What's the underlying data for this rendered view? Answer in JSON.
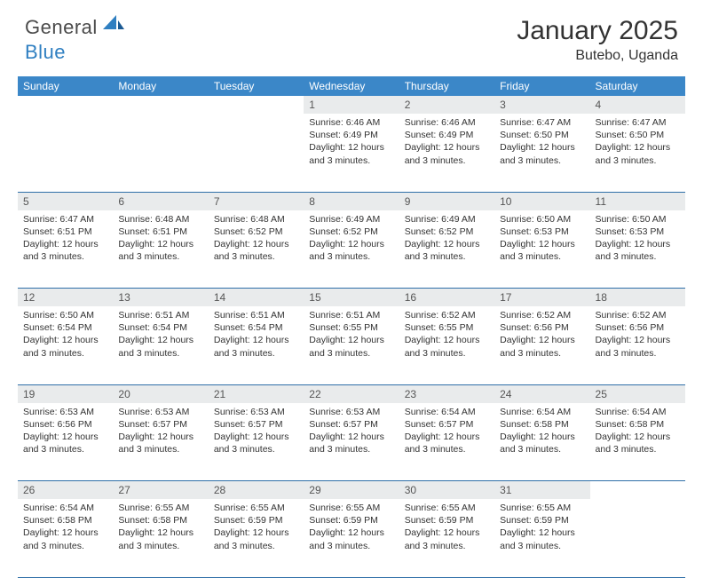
{
  "logo": {
    "part1": "General",
    "part2": "Blue"
  },
  "title": {
    "month": "January 2025",
    "location": "Butebo, Uganda"
  },
  "colors": {
    "header_bg": "#3b87c8",
    "header_text": "#ffffff",
    "daynum_bg": "#e9ebec",
    "border": "#2f6fa8",
    "logo_gray": "#4b4b4b",
    "logo_blue": "#2f7fc1"
  },
  "weekdays": [
    "Sunday",
    "Monday",
    "Tuesday",
    "Wednesday",
    "Thursday",
    "Friday",
    "Saturday"
  ],
  "first_weekday_index": 3,
  "days": [
    {
      "n": 1,
      "sunrise": "6:46 AM",
      "sunset": "6:49 PM",
      "daylight": "12 hours and 3 minutes."
    },
    {
      "n": 2,
      "sunrise": "6:46 AM",
      "sunset": "6:49 PM",
      "daylight": "12 hours and 3 minutes."
    },
    {
      "n": 3,
      "sunrise": "6:47 AM",
      "sunset": "6:50 PM",
      "daylight": "12 hours and 3 minutes."
    },
    {
      "n": 4,
      "sunrise": "6:47 AM",
      "sunset": "6:50 PM",
      "daylight": "12 hours and 3 minutes."
    },
    {
      "n": 5,
      "sunrise": "6:47 AM",
      "sunset": "6:51 PM",
      "daylight": "12 hours and 3 minutes."
    },
    {
      "n": 6,
      "sunrise": "6:48 AM",
      "sunset": "6:51 PM",
      "daylight": "12 hours and 3 minutes."
    },
    {
      "n": 7,
      "sunrise": "6:48 AM",
      "sunset": "6:52 PM",
      "daylight": "12 hours and 3 minutes."
    },
    {
      "n": 8,
      "sunrise": "6:49 AM",
      "sunset": "6:52 PM",
      "daylight": "12 hours and 3 minutes."
    },
    {
      "n": 9,
      "sunrise": "6:49 AM",
      "sunset": "6:52 PM",
      "daylight": "12 hours and 3 minutes."
    },
    {
      "n": 10,
      "sunrise": "6:50 AM",
      "sunset": "6:53 PM",
      "daylight": "12 hours and 3 minutes."
    },
    {
      "n": 11,
      "sunrise": "6:50 AM",
      "sunset": "6:53 PM",
      "daylight": "12 hours and 3 minutes."
    },
    {
      "n": 12,
      "sunrise": "6:50 AM",
      "sunset": "6:54 PM",
      "daylight": "12 hours and 3 minutes."
    },
    {
      "n": 13,
      "sunrise": "6:51 AM",
      "sunset": "6:54 PM",
      "daylight": "12 hours and 3 minutes."
    },
    {
      "n": 14,
      "sunrise": "6:51 AM",
      "sunset": "6:54 PM",
      "daylight": "12 hours and 3 minutes."
    },
    {
      "n": 15,
      "sunrise": "6:51 AM",
      "sunset": "6:55 PM",
      "daylight": "12 hours and 3 minutes."
    },
    {
      "n": 16,
      "sunrise": "6:52 AM",
      "sunset": "6:55 PM",
      "daylight": "12 hours and 3 minutes."
    },
    {
      "n": 17,
      "sunrise": "6:52 AM",
      "sunset": "6:56 PM",
      "daylight": "12 hours and 3 minutes."
    },
    {
      "n": 18,
      "sunrise": "6:52 AM",
      "sunset": "6:56 PM",
      "daylight": "12 hours and 3 minutes."
    },
    {
      "n": 19,
      "sunrise": "6:53 AM",
      "sunset": "6:56 PM",
      "daylight": "12 hours and 3 minutes."
    },
    {
      "n": 20,
      "sunrise": "6:53 AM",
      "sunset": "6:57 PM",
      "daylight": "12 hours and 3 minutes."
    },
    {
      "n": 21,
      "sunrise": "6:53 AM",
      "sunset": "6:57 PM",
      "daylight": "12 hours and 3 minutes."
    },
    {
      "n": 22,
      "sunrise": "6:53 AM",
      "sunset": "6:57 PM",
      "daylight": "12 hours and 3 minutes."
    },
    {
      "n": 23,
      "sunrise": "6:54 AM",
      "sunset": "6:57 PM",
      "daylight": "12 hours and 3 minutes."
    },
    {
      "n": 24,
      "sunrise": "6:54 AM",
      "sunset": "6:58 PM",
      "daylight": "12 hours and 3 minutes."
    },
    {
      "n": 25,
      "sunrise": "6:54 AM",
      "sunset": "6:58 PM",
      "daylight": "12 hours and 3 minutes."
    },
    {
      "n": 26,
      "sunrise": "6:54 AM",
      "sunset": "6:58 PM",
      "daylight": "12 hours and 3 minutes."
    },
    {
      "n": 27,
      "sunrise": "6:55 AM",
      "sunset": "6:58 PM",
      "daylight": "12 hours and 3 minutes."
    },
    {
      "n": 28,
      "sunrise": "6:55 AM",
      "sunset": "6:59 PM",
      "daylight": "12 hours and 3 minutes."
    },
    {
      "n": 29,
      "sunrise": "6:55 AM",
      "sunset": "6:59 PM",
      "daylight": "12 hours and 3 minutes."
    },
    {
      "n": 30,
      "sunrise": "6:55 AM",
      "sunset": "6:59 PM",
      "daylight": "12 hours and 3 minutes."
    },
    {
      "n": 31,
      "sunrise": "6:55 AM",
      "sunset": "6:59 PM",
      "daylight": "12 hours and 3 minutes."
    }
  ],
  "labels": {
    "sunrise": "Sunrise:",
    "sunset": "Sunset:",
    "daylight": "Daylight:"
  }
}
